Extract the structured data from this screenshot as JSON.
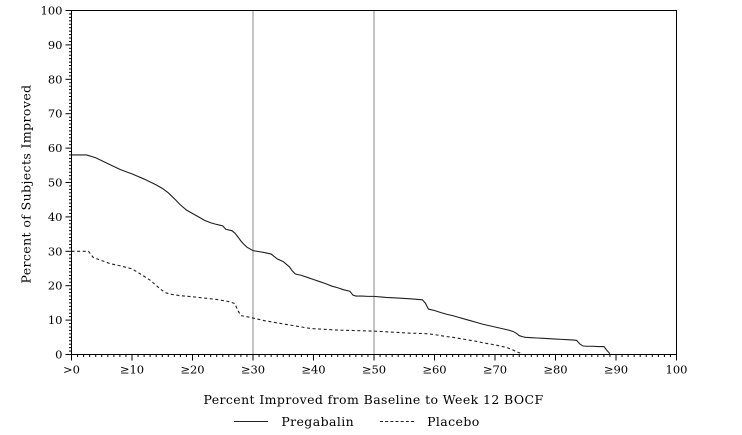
{
  "figure": {
    "background": "#ffffff",
    "frame_color": "#000000",
    "text_color": "#000000"
  },
  "chart_data": {
    "type": "line",
    "title": "",
    "xlabel": "Percent Improved from Baseline to Week 12 BOCF",
    "ylabel": "Percent of Subjects Improved",
    "xlim": [
      0,
      100
    ],
    "ylim": [
      0,
      100
    ],
    "grid": false,
    "minor_tick_step": 1,
    "x_ticks": [
      {
        "value": 0,
        "label": ">0"
      },
      {
        "value": 10,
        "label": "≥10"
      },
      {
        "value": 20,
        "label": "≥20"
      },
      {
        "value": 30,
        "label": "≥30"
      },
      {
        "value": 40,
        "label": "≥40"
      },
      {
        "value": 50,
        "label": "≥50"
      },
      {
        "value": 60,
        "label": "≥60"
      },
      {
        "value": 70,
        "label": "≥70"
      },
      {
        "value": 80,
        "label": "≥80"
      },
      {
        "value": 90,
        "label": "≥90"
      },
      {
        "value": 100,
        "label": "100"
      }
    ],
    "y_ticks": [
      {
        "value": 0,
        "label": "0"
      },
      {
        "value": 10,
        "label": "10"
      },
      {
        "value": 20,
        "label": "20"
      },
      {
        "value": 30,
        "label": "30"
      },
      {
        "value": 40,
        "label": "40"
      },
      {
        "value": 50,
        "label": "50"
      },
      {
        "value": 60,
        "label": "60"
      },
      {
        "value": 70,
        "label": "70"
      },
      {
        "value": 80,
        "label": "80"
      },
      {
        "value": 90,
        "label": "90"
      },
      {
        "value": 100,
        "label": "100"
      }
    ],
    "reference_lines_x": [
      30,
      50
    ],
    "reference_line_color": "#8a8a8a",
    "legend_position": "bottom",
    "series": [
      {
        "name": "Pregabalin",
        "line_style": "solid",
        "color": "#1f1f1f",
        "points": [
          [
            0,
            58
          ],
          [
            2.5,
            58
          ],
          [
            4,
            57.2
          ],
          [
            6,
            55.5
          ],
          [
            8,
            53.8
          ],
          [
            10,
            52.5
          ],
          [
            12,
            51
          ],
          [
            14,
            49.3
          ],
          [
            15,
            48.3
          ],
          [
            16,
            47
          ],
          [
            17,
            45.3
          ],
          [
            18,
            43.5
          ],
          [
            19,
            42
          ],
          [
            20,
            41
          ],
          [
            21,
            40
          ],
          [
            22,
            39
          ],
          [
            23,
            38.3
          ],
          [
            24,
            37.8
          ],
          [
            25,
            37.4
          ],
          [
            25.5,
            36.4
          ],
          [
            26.5,
            36
          ],
          [
            27,
            35.3
          ],
          [
            27.5,
            34.2
          ],
          [
            28,
            33
          ],
          [
            28.5,
            32
          ],
          [
            29,
            31.2
          ],
          [
            30,
            30.2
          ],
          [
            31,
            29.9
          ],
          [
            32,
            29.6
          ],
          [
            33,
            29.2
          ],
          [
            34,
            27.8
          ],
          [
            35,
            27
          ],
          [
            36,
            25.5
          ],
          [
            36.5,
            24.3
          ],
          [
            37,
            23.4
          ],
          [
            38,
            23
          ],
          [
            39,
            22.4
          ],
          [
            40,
            21.8
          ],
          [
            41,
            21.2
          ],
          [
            42,
            20.6
          ],
          [
            43,
            19.9
          ],
          [
            44,
            19.4
          ],
          [
            45,
            18.8
          ],
          [
            46,
            18.4
          ],
          [
            46.5,
            17.3
          ],
          [
            47,
            17
          ],
          [
            48,
            17
          ],
          [
            49,
            16.9
          ],
          [
            50,
            16.9
          ],
          [
            52,
            16.6
          ],
          [
            54,
            16.4
          ],
          [
            56,
            16.2
          ],
          [
            58,
            15.9
          ],
          [
            58.5,
            14.9
          ],
          [
            59,
            13.2
          ],
          [
            60,
            12.8
          ],
          [
            61,
            12.2
          ],
          [
            62,
            11.7
          ],
          [
            63,
            11.3
          ],
          [
            64,
            10.8
          ],
          [
            65,
            10.3
          ],
          [
            66,
            9.8
          ],
          [
            67,
            9.3
          ],
          [
            68,
            8.8
          ],
          [
            69,
            8.4
          ],
          [
            70,
            8
          ],
          [
            71,
            7.6
          ],
          [
            72,
            7.2
          ],
          [
            73,
            6.7
          ],
          [
            73.5,
            6.2
          ],
          [
            74,
            5.5
          ],
          [
            74.5,
            5.2
          ],
          [
            75,
            5
          ],
          [
            76,
            4.9
          ],
          [
            77,
            4.8
          ],
          [
            78,
            4.7
          ],
          [
            79,
            4.6
          ],
          [
            80,
            4.5
          ],
          [
            81,
            4.4
          ],
          [
            82,
            4.3
          ],
          [
            83,
            4.2
          ],
          [
            83.5,
            4.1
          ],
          [
            84,
            3.1
          ],
          [
            84.5,
            2.5
          ],
          [
            85,
            2.4
          ],
          [
            86,
            2.4
          ],
          [
            87,
            2.3
          ],
          [
            88,
            2.3
          ],
          [
            88.5,
            1.2
          ],
          [
            89,
            0.2
          ]
        ]
      },
      {
        "name": "Placebo",
        "line_style": "dashed",
        "color": "#1f1f1f",
        "points": [
          [
            0,
            30
          ],
          [
            2.8,
            30
          ],
          [
            3.6,
            28.2
          ],
          [
            5,
            27.3
          ],
          [
            6.4,
            26.4
          ],
          [
            8,
            25.8
          ],
          [
            10,
            24.9
          ],
          [
            11.4,
            23.4
          ],
          [
            13,
            21.6
          ],
          [
            14.7,
            19
          ],
          [
            15.5,
            18
          ],
          [
            16.4,
            17.5
          ],
          [
            18,
            17.1
          ],
          [
            20,
            16.8
          ],
          [
            22,
            16.4
          ],
          [
            24,
            16
          ],
          [
            26,
            15.4
          ],
          [
            27,
            14.8
          ],
          [
            27.5,
            12.8
          ],
          [
            28,
            11.3
          ],
          [
            29,
            11
          ],
          [
            30,
            10.6
          ],
          [
            32,
            9.8
          ],
          [
            34,
            9.2
          ],
          [
            36,
            8.6
          ],
          [
            38,
            8
          ],
          [
            39,
            7.7
          ],
          [
            40,
            7.5
          ],
          [
            42,
            7.3
          ],
          [
            44,
            7.1
          ],
          [
            46,
            7
          ],
          [
            48,
            6.9
          ],
          [
            50,
            6.8
          ],
          [
            52,
            6.6
          ],
          [
            54,
            6.4
          ],
          [
            56,
            6.2
          ],
          [
            58,
            6.1
          ],
          [
            59,
            6
          ],
          [
            60,
            5.8
          ],
          [
            61,
            5.5
          ],
          [
            62,
            5.2
          ],
          [
            63,
            5
          ],
          [
            64,
            4.7
          ],
          [
            65,
            4.4
          ],
          [
            66,
            4.1
          ],
          [
            67,
            3.8
          ],
          [
            68,
            3.4
          ],
          [
            69,
            3.1
          ],
          [
            70,
            2.8
          ],
          [
            71,
            2.4
          ],
          [
            72,
            2
          ],
          [
            73,
            1.3
          ],
          [
            73.5,
            0.8
          ],
          [
            74.5,
            0.2
          ]
        ]
      }
    ]
  }
}
